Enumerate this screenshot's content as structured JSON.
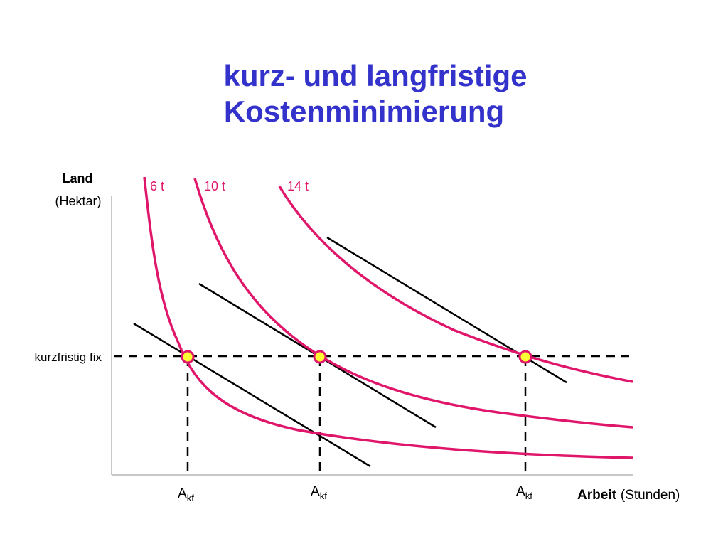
{
  "title": {
    "line1": "kurz- und langfristige",
    "line2": "Kostenminimierung"
  },
  "axes": {
    "y_label_bold": "Land",
    "y_label_unit": "(Hektar)",
    "x_label_bold": "Arbeit",
    "x_label_unit": "(Stunden)"
  },
  "fixed_level_label": "kurzfristig fix",
  "isoquants": [
    {
      "name": "6 t"
    },
    {
      "name": "10 t"
    },
    {
      "name": "14 t"
    }
  ],
  "labor_points": [
    {
      "base": "A",
      "sub": "kf"
    },
    {
      "base": "A",
      "sub": "kf"
    },
    {
      "base": "A",
      "sub": "kf"
    }
  ],
  "colors": {
    "title": "#3333cc",
    "isoquant": "#e0166b",
    "isocost": "#000000",
    "point_fill": "#ffff33",
    "point_stroke": "#e0166b",
    "axis": "#c8c8c8"
  }
}
